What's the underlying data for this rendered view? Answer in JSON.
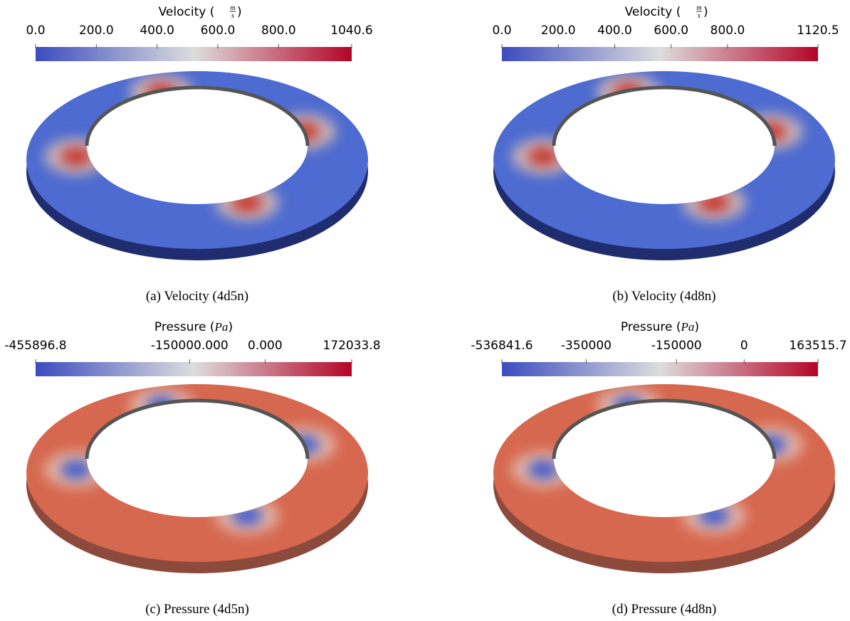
{
  "colormap": [
    "#3b4cc0",
    "#dddddd",
    "#b40426"
  ],
  "panels": [
    {
      "kind": "velocity",
      "title": "Velocity",
      "unit_numerator": "m",
      "unit_denominator": "s",
      "range": [
        0,
        1040.6
      ],
      "ticks": [
        {
          "value": 0,
          "label": "0.0"
        },
        {
          "value": 200,
          "label": "200.0"
        },
        {
          "value": 400,
          "label": "400.0"
        },
        {
          "value": 600,
          "label": "600.0"
        },
        {
          "value": 800,
          "label": "800.0"
        },
        1040.6
      ],
      "caption": "(a) Velocity (4d5n)"
    },
    {
      "kind": "velocity",
      "title": "Velocity",
      "unit_numerator": "m",
      "unit_denominator": "s",
      "range": [
        0,
        1120.5
      ],
      "ticks": [
        {
          "value": 0,
          "label": "0.0"
        },
        {
          "value": 200,
          "label": "200.0"
        },
        {
          "value": 400,
          "label": "400.0"
        },
        {
          "value": 600,
          "label": "600.0"
        },
        {
          "value": 800,
          "label": "800.0"
        },
        1120.5
      ],
      "caption": "(b) Velocity (4d8n)"
    },
    {
      "kind": "pressure",
      "title": "Pressure",
      "unit": "Pa",
      "range": [
        -455896.8,
        172033.8
      ],
      "ticks": [
        -455896.8,
        {
          "value": -150000,
          "label": "-150000.000"
        },
        {
          "value": 0,
          "label": "0.000"
        },
        172033.8
      ],
      "caption": "(c) Pressure (4d5n)"
    },
    {
      "kind": "pressure",
      "title": "Pressure",
      "unit": "Pa",
      "range": [
        -536841.6,
        163515.7
      ],
      "ticks": [
        -536841.6,
        -350000,
        -150000,
        0,
        163515.7
      ],
      "caption": "(d) Pressure (4d8n)"
    }
  ]
}
